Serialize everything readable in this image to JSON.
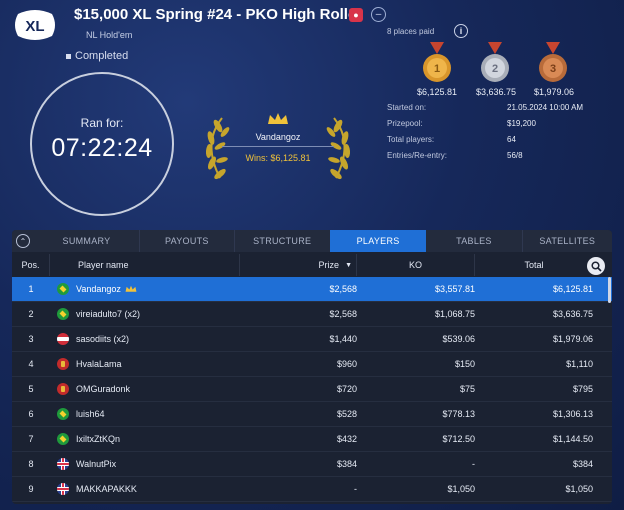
{
  "header": {
    "title": "$15,000 XL Spring #24 - PKO High Roller",
    "game_type": "NL Hold'em",
    "status": "Completed",
    "logo_text": "XL"
  },
  "clock": {
    "label": "Ran for:",
    "time": "07:22:24"
  },
  "winner": {
    "name": "Vandangoz",
    "wins_text": "Wins: $6,125.81"
  },
  "payouts": {
    "places_paid": "8 places paid",
    "medals": [
      {
        "rank": "1",
        "amount": "$6,125.81",
        "color": "#d9962b"
      },
      {
        "rank": "2",
        "amount": "$3,636.75",
        "color": "#a9aeb8"
      },
      {
        "rank": "3",
        "amount": "$1,979.06",
        "color": "#b86b3a"
      }
    ]
  },
  "details": {
    "started_label": "Started on:",
    "started_value": "21.05.2024   10:00 AM",
    "prizepool_label": "Prizepool:",
    "prizepool_value": "$19,200",
    "players_label": "Total players:",
    "players_value": "64",
    "entries_label": "Entries/Re-entry:",
    "entries_value": "56/8"
  },
  "tabs": [
    {
      "label": "SUMMARY",
      "active": false
    },
    {
      "label": "PAYOUTS",
      "active": false
    },
    {
      "label": "STRUCTURE",
      "active": false
    },
    {
      "label": "PLAYERS",
      "active": true
    },
    {
      "label": "TABLES",
      "active": false
    },
    {
      "label": "SATELLITES",
      "active": false
    }
  ],
  "table": {
    "columns": {
      "pos": "Pos.",
      "name": "Player name",
      "prize": "Prize",
      "ko": "KO",
      "total": "Total"
    },
    "rows": [
      {
        "pos": "1",
        "flag": "br",
        "name": "Vandangoz",
        "crown": true,
        "prize": "$2,568",
        "ko": "$3,557.81",
        "total": "$6,125.81"
      },
      {
        "pos": "2",
        "flag": "br",
        "name": "vireiadulto7 (x2)",
        "crown": false,
        "prize": "$2,568",
        "ko": "$1,068.75",
        "total": "$3,636.75"
      },
      {
        "pos": "3",
        "flag": "at",
        "name": "sasodiits (x2)",
        "crown": false,
        "prize": "$1,440",
        "ko": "$539.06",
        "total": "$1,979.06"
      },
      {
        "pos": "4",
        "flag": "me",
        "name": "HvalaLama",
        "crown": false,
        "prize": "$960",
        "ko": "$150",
        "total": "$1,110"
      },
      {
        "pos": "5",
        "flag": "me",
        "name": "OMGuradonk",
        "crown": false,
        "prize": "$720",
        "ko": "$75",
        "total": "$795"
      },
      {
        "pos": "6",
        "flag": "br",
        "name": "luish64",
        "crown": false,
        "prize": "$528",
        "ko": "$778.13",
        "total": "$1,306.13"
      },
      {
        "pos": "7",
        "flag": "br",
        "name": "IxiltxZtKQn",
        "crown": false,
        "prize": "$432",
        "ko": "$712.50",
        "total": "$1,144.50"
      },
      {
        "pos": "8",
        "flag": "gb",
        "name": "WalnutPix",
        "crown": false,
        "prize": "$384",
        "ko": "-",
        "total": "$384"
      },
      {
        "pos": "9",
        "flag": "gb",
        "name": "MAKKAPAKKK",
        "crown": false,
        "prize": "-",
        "ko": "$1,050",
        "total": "$1,050"
      }
    ]
  },
  "colors": {
    "accent": "#1f6fd6",
    "gold": "#f0c23a",
    "background": "#16285a"
  }
}
